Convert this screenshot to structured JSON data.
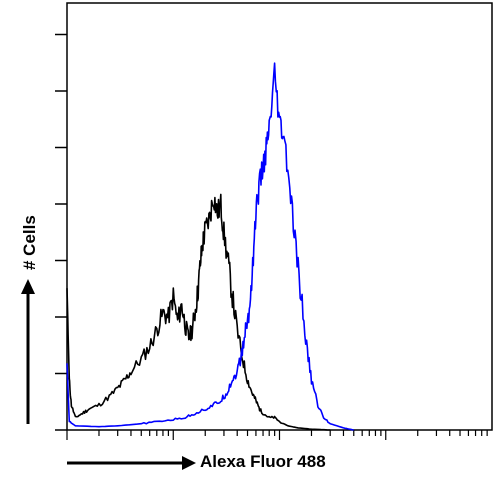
{
  "chart_data": {
    "type": "line",
    "title": "",
    "xlabel": "Alexa Fluor 488",
    "ylabel": "# Cells",
    "xscale": "log",
    "xlim": [
      1,
      10000
    ],
    "ylim": [
      0,
      100
    ],
    "grid": false,
    "legend": "none",
    "series": [
      {
        "color": "#000000",
        "x": [
          1,
          1.05,
          1.1,
          1.2,
          1.4,
          1.6,
          2.0,
          2.5,
          3.0,
          3.5,
          4.0,
          5.0,
          6.0,
          7.0,
          8.0,
          9.0,
          10,
          11,
          12,
          13,
          14,
          15,
          16,
          17,
          18,
          19,
          20,
          22,
          24,
          26,
          28,
          30,
          33,
          36,
          40,
          45,
          50,
          55,
          60,
          65,
          70,
          80,
          90,
          100,
          120,
          150,
          200,
          300
        ],
        "y": [
          34,
          12,
          6,
          3,
          4,
          5,
          6,
          8,
          10,
          12,
          14,
          17,
          20,
          24,
          28,
          27,
          32,
          26,
          30,
          25,
          22,
          24,
          28,
          33,
          40,
          45,
          48,
          51,
          56,
          52,
          54,
          47,
          40,
          32,
          24,
          17,
          12,
          9,
          7,
          5,
          4,
          3,
          3,
          2,
          1,
          0.5,
          0.2,
          0
        ]
      },
      {
        "color": "#0000ff",
        "x": [
          1,
          1.05,
          1.2,
          2,
          3,
          5,
          7,
          10,
          13,
          16,
          20,
          24,
          28,
          32,
          36,
          40,
          44,
          48,
          52,
          56,
          60,
          64,
          70,
          76,
          82,
          90,
          100,
          110,
          125,
          140,
          160,
          180,
          200,
          230,
          260,
          300,
          400,
          500
        ],
        "y": [
          16,
          2,
          1,
          0.8,
          1,
          1.5,
          2,
          2.5,
          3,
          4,
          5,
          6,
          7,
          9,
          12,
          14,
          18,
          24,
          28,
          40,
          52,
          58,
          63,
          68,
          74,
          85,
          73,
          70,
          58,
          45,
          32,
          20,
          12,
          6,
          3,
          1.5,
          0.5,
          0
        ]
      }
    ]
  },
  "x_axis": {
    "arrow_icon": "right-arrow-icon"
  },
  "y_axis": {
    "arrow_icon": "up-arrow-icon"
  }
}
